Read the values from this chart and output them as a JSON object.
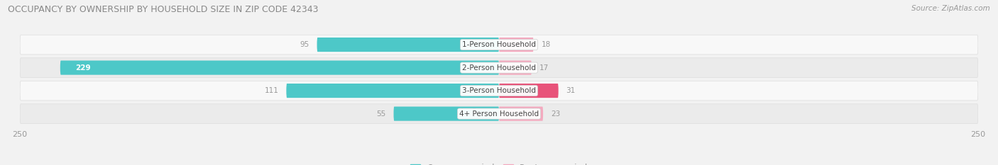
{
  "title": "OCCUPANCY BY OWNERSHIP BY HOUSEHOLD SIZE IN ZIP CODE 42343",
  "source": "Source: ZipAtlas.com",
  "categories": [
    "1-Person Household",
    "2-Person Household",
    "3-Person Household",
    "4+ Person Household"
  ],
  "owner_values": [
    95,
    229,
    111,
    55
  ],
  "renter_values": [
    18,
    17,
    31,
    23
  ],
  "owner_color": "#4DC8C8",
  "renter_colors": [
    "#F4AABF",
    "#F4AABF",
    "#E8537A",
    "#F4AABF"
  ],
  "axis_max": 250,
  "axis_min": -250,
  "bg_color": "#f2f2f2",
  "row_colors": [
    "#f8f8f8",
    "#ebebeb"
  ],
  "label_color": "#999999",
  "title_color": "#888888",
  "legend_owner_color": "#4DC8C8",
  "legend_renter_color": "#F4AABF",
  "row_border_color": "#dddddd"
}
